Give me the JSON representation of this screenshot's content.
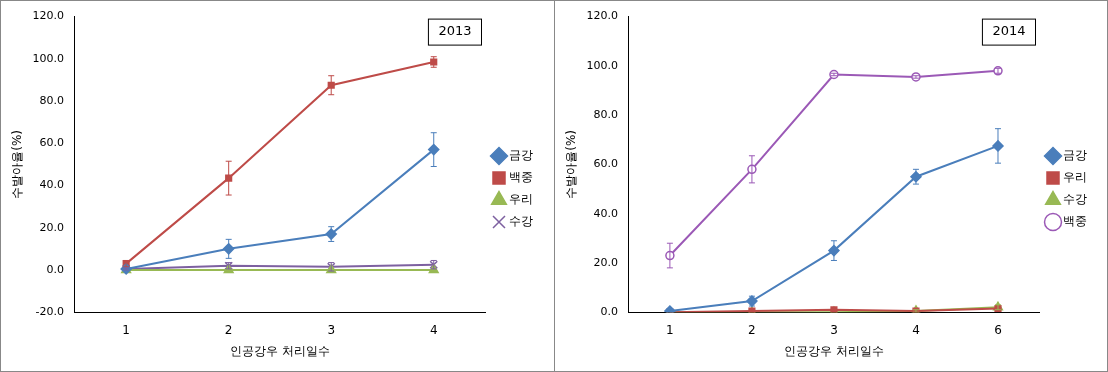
{
  "chart_data": [
    {
      "type": "line",
      "title": "2013",
      "x_label": "인공강우 처리일수",
      "y_label": "수발아율(%)",
      "categories": [
        "1",
        "2",
        "3",
        "4"
      ],
      "ylim": [
        -20,
        120
      ],
      "yticks": [
        {
          "value": -20,
          "label": "-20.0"
        },
        {
          "value": 0,
          "label": "0.0"
        },
        {
          "value": 20,
          "label": "20.0"
        },
        {
          "value": 40,
          "label": "40.0"
        },
        {
          "value": 60,
          "label": "60.0"
        },
        {
          "value": 80,
          "label": "80.0"
        },
        {
          "value": 100,
          "label": "100.0"
        },
        {
          "value": 120,
          "label": "120.0"
        }
      ],
      "grid": false,
      "legend": "right",
      "series": [
        {
          "name": "금강",
          "color": "#4a7ebb",
          "marker": "diamond",
          "values": [
            0.5,
            10,
            17,
            57
          ],
          "errors": [
            0.5,
            4.5,
            3.5,
            8
          ]
        },
        {
          "name": "백중",
          "color": "#be4b48",
          "marker": "square",
          "values": [
            3,
            43.5,
            87.5,
            98.5
          ],
          "errors": [
            1.5,
            8,
            4.5,
            2.5
          ]
        },
        {
          "name": "우리",
          "color": "#98b954",
          "marker": "triangle",
          "values": [
            0,
            0,
            0,
            0
          ],
          "errors": [
            0,
            0,
            0,
            0
          ]
        },
        {
          "name": "수강",
          "color": "#7d60a0",
          "marker": "x",
          "values": [
            0.5,
            2,
            1.5,
            2.5
          ],
          "errors": [
            0.5,
            1.5,
            2,
            2
          ]
        }
      ]
    },
    {
      "type": "line",
      "title": "2014",
      "x_label": "인공강우 처리일수",
      "y_label": "수발아율(%)",
      "categories": [
        "1",
        "2",
        "3",
        "4",
        "6"
      ],
      "ylim": [
        0,
        120
      ],
      "yticks": [
        {
          "value": 0,
          "label": "0.0"
        },
        {
          "value": 20,
          "label": "20.0"
        },
        {
          "value": 40,
          "label": "40.0"
        },
        {
          "value": 60,
          "label": "60.0"
        },
        {
          "value": 80,
          "label": "80.0"
        },
        {
          "value": 100,
          "label": "100.0"
        },
        {
          "value": 120,
          "label": "120.0"
        }
      ],
      "grid": false,
      "legend": "right",
      "series": [
        {
          "name": "금강",
          "color": "#4a7ebb",
          "marker": "diamond",
          "values": [
            0.5,
            4.5,
            25,
            55,
            67.5
          ],
          "errors": [
            0.5,
            2,
            4,
            3,
            7
          ]
        },
        {
          "name": "우리",
          "color": "#be4b48",
          "marker": "square",
          "values": [
            0,
            0.5,
            1,
            0.5,
            1.5
          ],
          "errors": [
            0,
            0.5,
            0.5,
            0.5,
            0.5
          ]
        },
        {
          "name": "수강",
          "color": "#98b954",
          "marker": "triangle",
          "values": [
            0,
            0,
            0,
            0.5,
            2
          ],
          "errors": [
            0,
            0,
            0,
            0.5,
            1
          ]
        },
        {
          "name": "백중",
          "color": "#9b59b6",
          "marker": "open_circle",
          "values": [
            23,
            58,
            96.5,
            95.5,
            98
          ],
          "errors": [
            5,
            5.5,
            0.5,
            0.5,
            1
          ]
        }
      ]
    }
  ]
}
